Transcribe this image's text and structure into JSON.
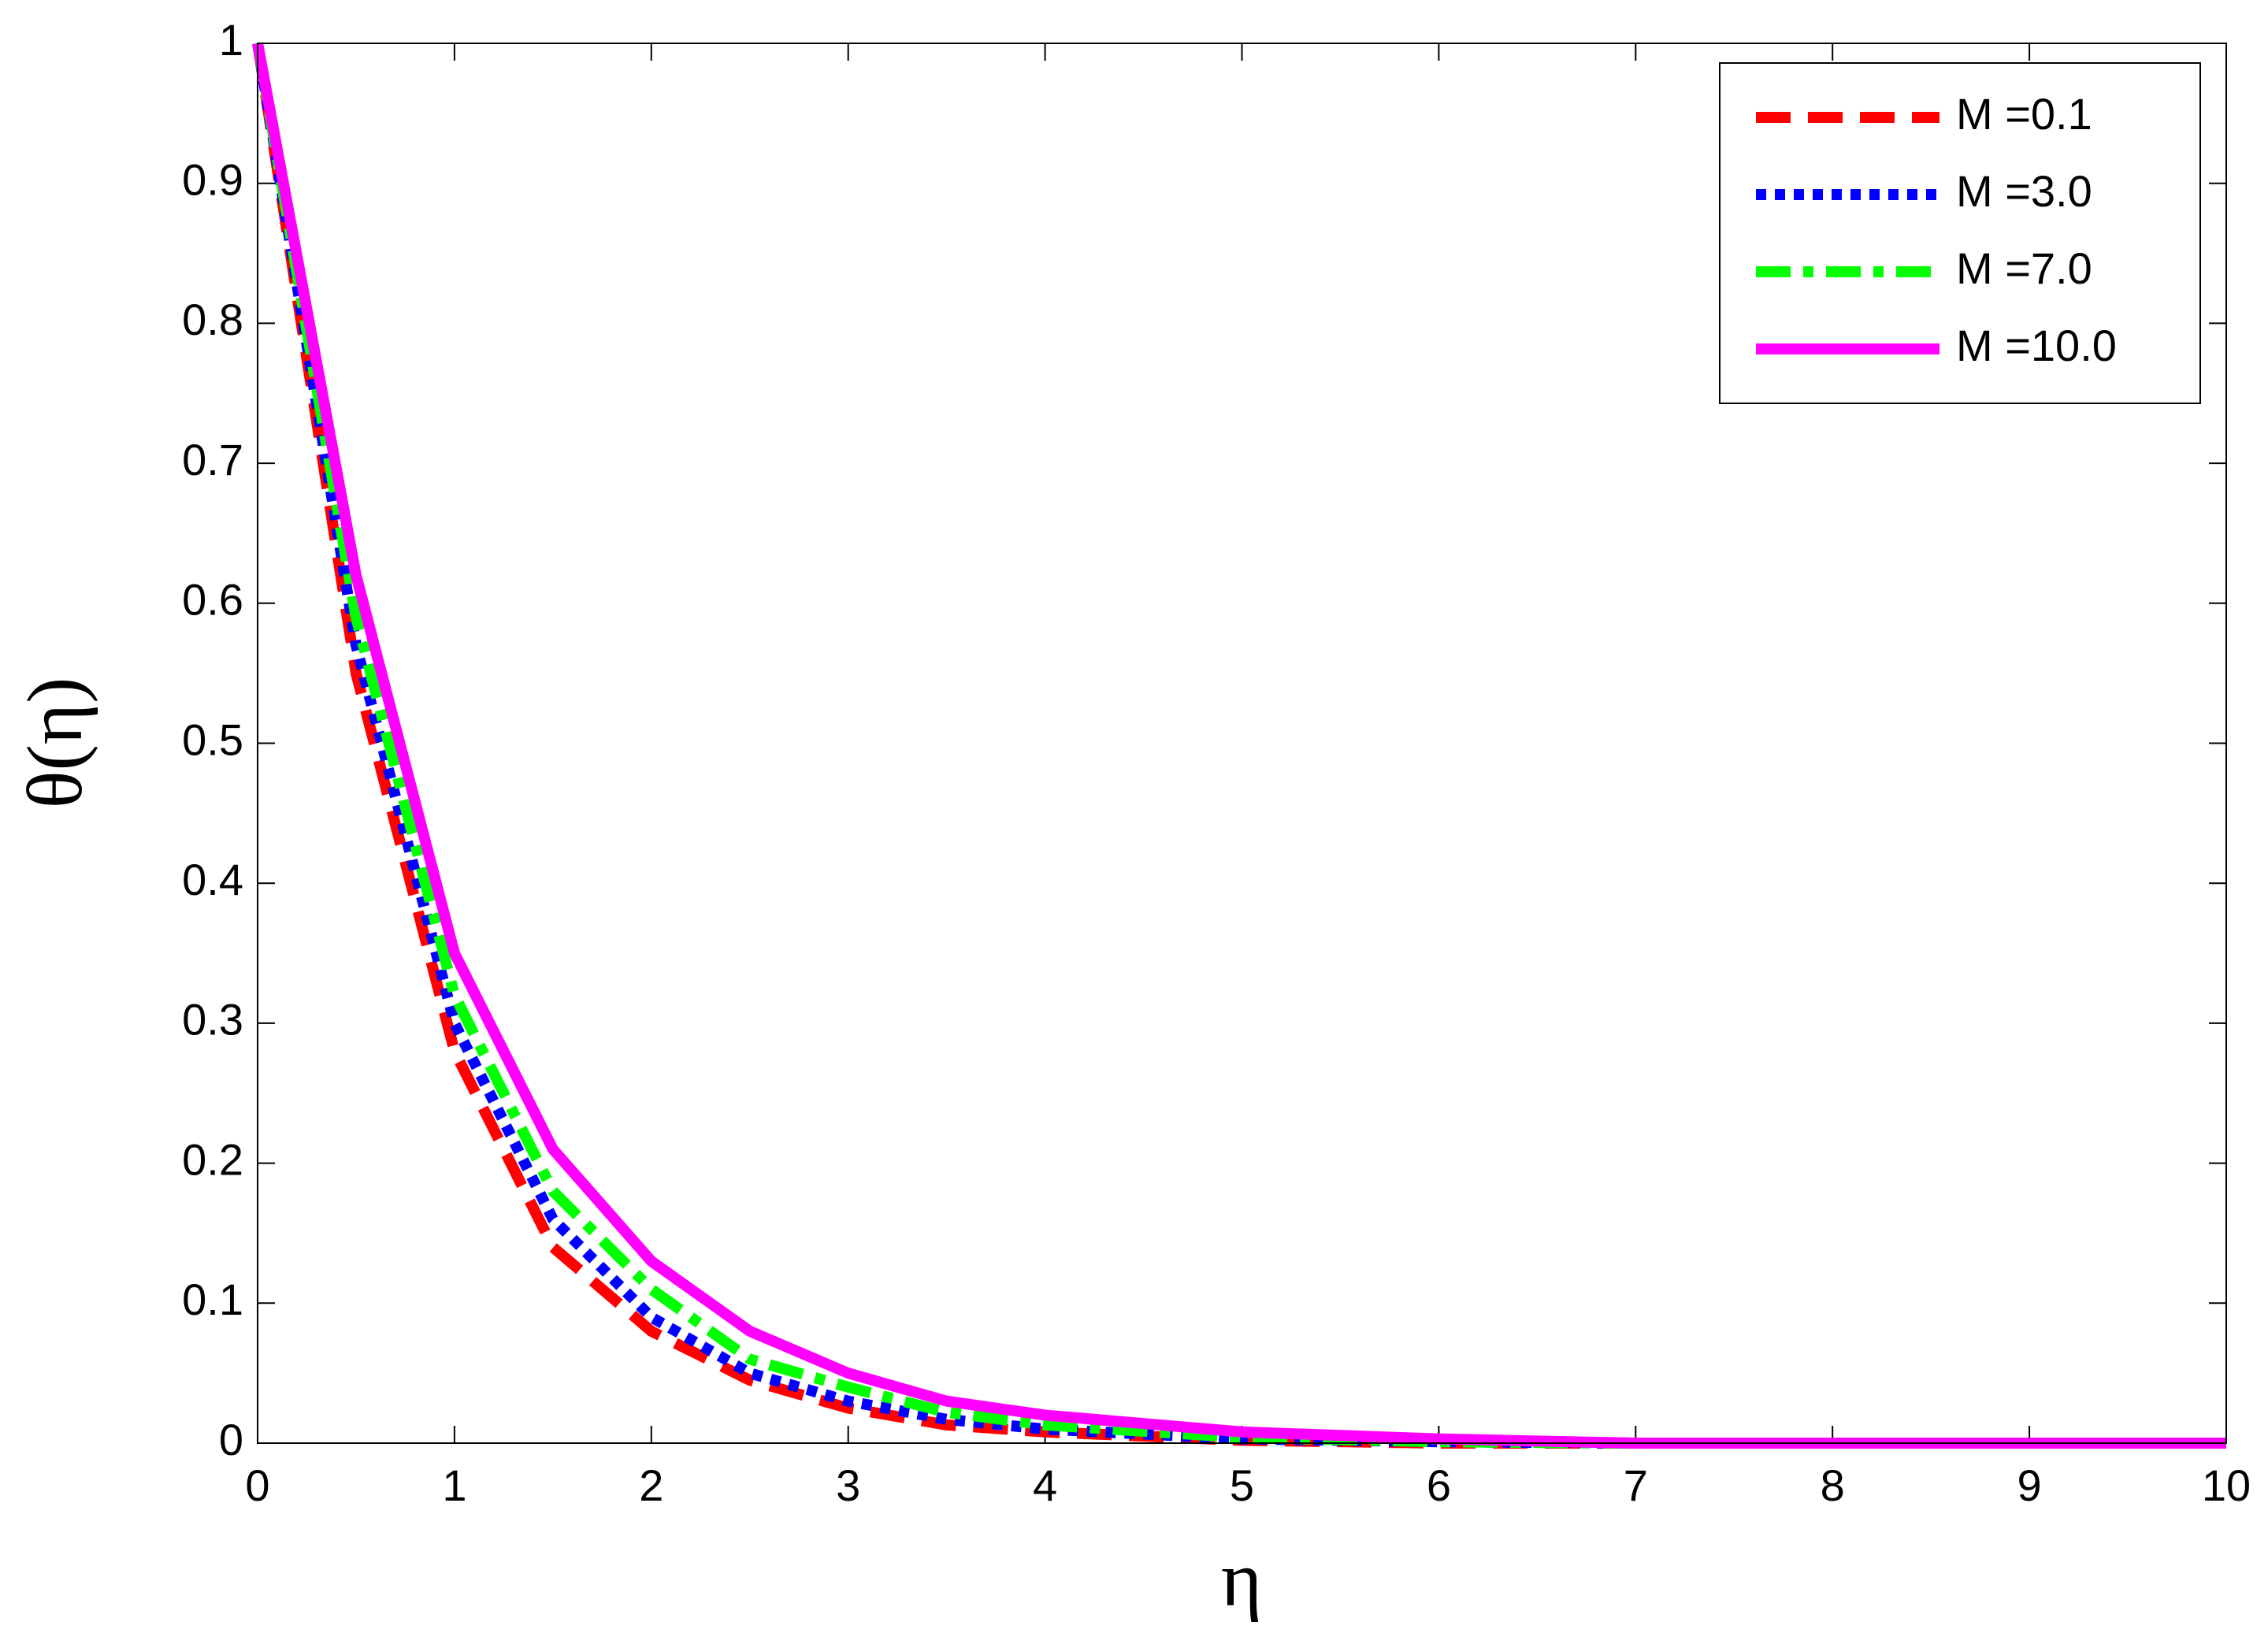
{
  "chart_data": {
    "type": "line",
    "x_label": "η",
    "y_label": "θ(η)",
    "x": [
      0,
      0.5,
      1,
      1.5,
      2,
      2.5,
      3,
      3.5,
      4,
      5,
      6,
      7,
      8,
      9,
      10
    ],
    "series": [
      {
        "name": "M =0.1",
        "color": "#ff0000",
        "linestyle": "dashed",
        "values": [
          1,
          0.55,
          0.28,
          0.14,
          0.08,
          0.045,
          0.025,
          0.013,
          0.008,
          0.002,
          0,
          0,
          0,
          0,
          0
        ]
      },
      {
        "name": "M =3.0",
        "color": "#0000ff",
        "linestyle": "dotted",
        "values": [
          1,
          0.57,
          0.3,
          0.16,
          0.09,
          0.05,
          0.03,
          0.017,
          0.01,
          0.003,
          0.001,
          0,
          0,
          0,
          0
        ]
      },
      {
        "name": "M =7.0",
        "color": "#00ff00",
        "linestyle": "dashdot",
        "values": [
          1,
          0.59,
          0.32,
          0.18,
          0.11,
          0.06,
          0.04,
          0.022,
          0.013,
          0.004,
          0.001,
          0,
          0,
          0,
          0
        ]
      },
      {
        "name": "M =10.0",
        "color": "#ff00ff",
        "linestyle": "solid",
        "values": [
          1,
          0.62,
          0.35,
          0.21,
          0.13,
          0.08,
          0.05,
          0.03,
          0.02,
          0.008,
          0.003,
          0,
          0,
          0,
          0
        ]
      }
    ],
    "xlim": [
      0,
      10
    ],
    "xticks": [
      0,
      1,
      2,
      3,
      4,
      5,
      6,
      7,
      8,
      9,
      10
    ],
    "ylim": [
      0,
      1
    ],
    "yticks": [
      0,
      0.1,
      0.2,
      0.3,
      0.4,
      0.5,
      0.6,
      0.7,
      0.8,
      0.9,
      1
    ],
    "grid": false,
    "legend": "upper right"
  }
}
